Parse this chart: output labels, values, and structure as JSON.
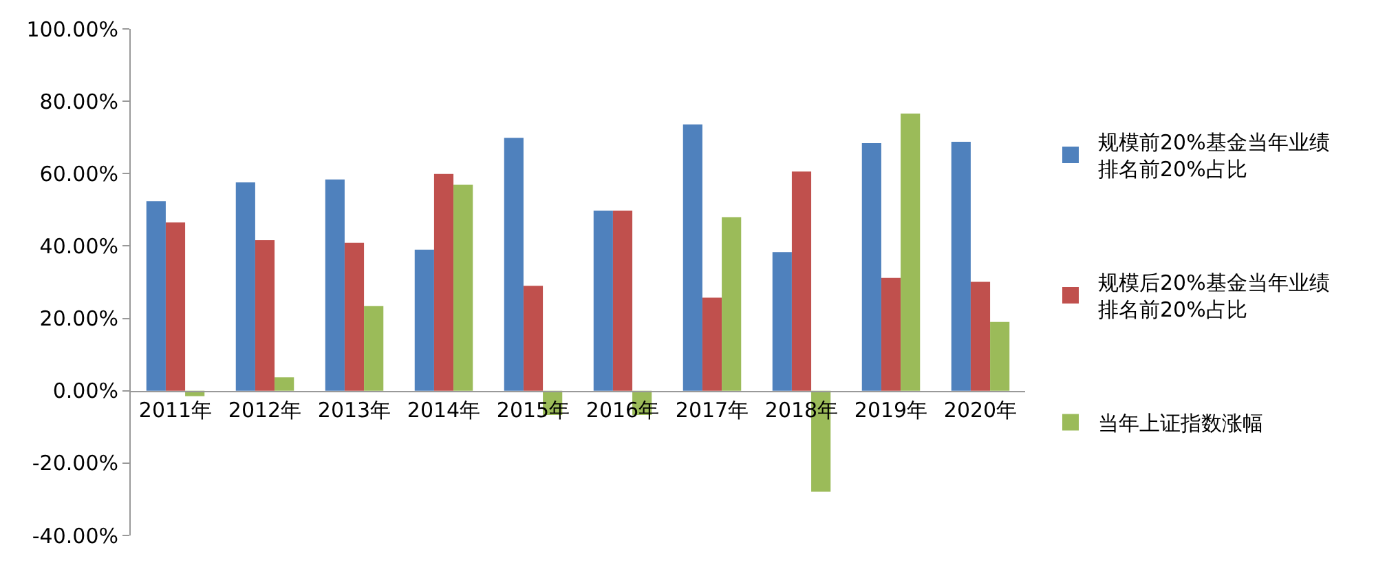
{
  "chart_data": {
    "type": "bar",
    "categories": [
      "2011年",
      "2012年",
      "2013年",
      "2014年",
      "2015年",
      "2016年",
      "2017年",
      "2018年",
      "2019年",
      "2020年"
    ],
    "series": [
      {
        "name": "规模前20%基金当年业绩排名前20%占比",
        "color": "#4f81bd",
        "values": [
          52.4,
          57.6,
          58.4,
          39.0,
          69.9,
          49.8,
          73.6,
          38.3,
          68.4,
          68.8
        ]
      },
      {
        "name": "规模后20%基金当年业绩排名前20%占比",
        "color": "#c0504d",
        "values": [
          46.5,
          41.6,
          40.9,
          59.9,
          29.0,
          49.8,
          25.7,
          60.6,
          31.2,
          30.1
        ]
      },
      {
        "name": "当年上证指数涨幅",
        "color": "#9bbb59",
        "values": [
          -1.5,
          3.7,
          23.4,
          56.9,
          -6.7,
          -6.7,
          48.0,
          -27.9,
          76.6,
          19.0
        ]
      }
    ],
    "ylim": [
      -40,
      100
    ],
    "yticks": [
      {
        "value": -40,
        "label": "-40.00%"
      },
      {
        "value": -20,
        "label": "-20.00%"
      },
      {
        "value": 0,
        "label": "0.00%"
      },
      {
        "value": 20,
        "label": "20.00%"
      },
      {
        "value": 40,
        "label": "40.00%"
      },
      {
        "value": 60,
        "label": "60.00%"
      },
      {
        "value": 80,
        "label": "80.00%"
      },
      {
        "value": 100,
        "label": "100.00%"
      }
    ],
    "legend": "right"
  }
}
